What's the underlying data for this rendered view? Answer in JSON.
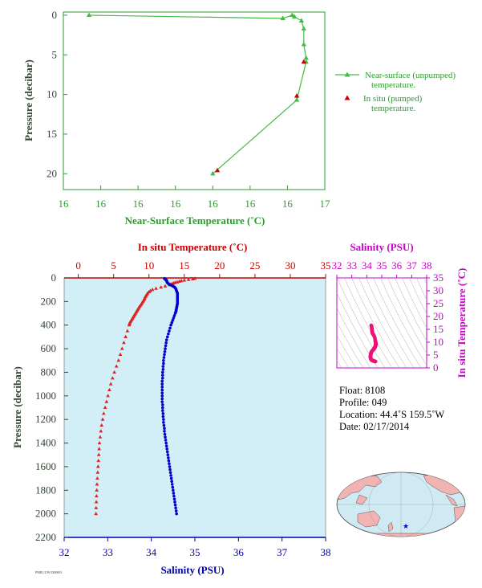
{
  "chart_data": [
    {
      "type": "line",
      "xlabel": "Near-Surface Temperature (˚C)",
      "ylabel": "Pressure (decibar)",
      "xticks": [
        "16",
        "16",
        "16",
        "16",
        "16",
        "16",
        "16",
        "17"
      ],
      "yticks": [
        "0",
        "5",
        "10",
        "15",
        "20"
      ],
      "xlim": [
        15.87,
        16.99
      ],
      "ylim": [
        22,
        -0.4
      ],
      "legend_position": "right",
      "series": [
        {
          "name": "Near-surface (unpumped) temperature.",
          "color": "#44bb44",
          "points": [
            {
              "x": 15.98,
              "y": 0.0
            },
            {
              "x": 16.81,
              "y": 0.4
            },
            {
              "x": 16.85,
              "y": 0.0
            },
            {
              "x": 16.86,
              "y": 0.2
            },
            {
              "x": 16.89,
              "y": 0.7
            },
            {
              "x": 16.9,
              "y": 1.7
            },
            {
              "x": 16.9,
              "y": 3.7
            },
            {
              "x": 16.91,
              "y": 5.4
            },
            {
              "x": 16.91,
              "y": 5.9
            },
            {
              "x": 16.87,
              "y": 10.7
            },
            {
              "x": 16.51,
              "y": 20.0
            }
          ]
        },
        {
          "name": "In situ (pumped) temperature.",
          "color": "#cc0000",
          "points": [
            {
              "x": 16.9,
              "y": 5.9
            },
            {
              "x": 16.87,
              "y": 10.2
            },
            {
              "x": 16.53,
              "y": 19.6
            }
          ]
        }
      ]
    },
    {
      "type": "scatter",
      "title_top": "In situ Temperature (˚C)",
      "xlabel": "Salinity (PSU)",
      "ylabel": "Pressure (decibar)",
      "temp_ticks": [
        "0",
        "5",
        "10",
        "15",
        "20",
        "25",
        "30",
        "35"
      ],
      "sal_ticks": [
        "32",
        "33",
        "34",
        "35",
        "36",
        "37",
        "38"
      ],
      "yticks": [
        "0",
        "200",
        "400",
        "600",
        "800",
        "1000",
        "1200",
        "1400",
        "1600",
        "1800",
        "2000",
        "2200"
      ],
      "temp_lim": [
        -2,
        35
      ],
      "sal_lim": [
        32,
        38
      ],
      "ylim": [
        2200,
        0
      ],
      "temperature": {
        "color": "#dd2222",
        "pressure": [
          5,
          10,
          15,
          20,
          25,
          30,
          35,
          40,
          45,
          50,
          55,
          60,
          70,
          80,
          90,
          100,
          110,
          120,
          130,
          140,
          150,
          160,
          170,
          180,
          190,
          200,
          210,
          220,
          230,
          240,
          250,
          260,
          270,
          280,
          290,
          300,
          310,
          320,
          330,
          340,
          350,
          360,
          370,
          380,
          390,
          400,
          450,
          500,
          550,
          600,
          650,
          700,
          750,
          800,
          850,
          900,
          950,
          1000,
          1050,
          1100,
          1150,
          1200,
          1250,
          1300,
          1350,
          1400,
          1450,
          1500,
          1550,
          1600,
          1650,
          1700,
          1750,
          1800,
          1850,
          1900,
          1950,
          2000
        ],
        "temp": [
          16.5,
          16.2,
          15.6,
          15.0,
          14.6,
          14.3,
          14.0,
          13.7,
          13.5,
          13.3,
          13.1,
          12.9,
          12.3,
          11.7,
          11.0,
          10.5,
          10.2,
          10.0,
          9.8,
          9.7,
          9.6,
          9.5,
          9.4,
          9.35,
          9.25,
          9.15,
          9.05,
          8.95,
          8.85,
          8.7,
          8.6,
          8.5,
          8.4,
          8.3,
          8.2,
          8.1,
          8.0,
          7.9,
          7.8,
          7.7,
          7.6,
          7.5,
          7.4,
          7.3,
          7.25,
          7.2,
          6.95,
          6.7,
          6.45,
          6.2,
          5.95,
          5.7,
          5.4,
          5.1,
          4.85,
          4.6,
          4.4,
          4.2,
          4.0,
          3.8,
          3.6,
          3.45,
          3.3,
          3.2,
          3.1,
          3.0,
          2.95,
          2.9,
          2.85,
          2.8,
          2.75,
          2.7,
          2.65,
          2.62,
          2.58,
          2.55,
          2.52,
          2.5
        ]
      },
      "salinity": {
        "color": "#0000cc",
        "pressure": [
          5,
          10,
          15,
          20,
          25,
          30,
          35,
          40,
          45,
          50,
          55,
          60,
          65,
          70,
          75,
          80,
          90,
          100,
          110,
          120,
          130,
          140,
          150,
          160,
          170,
          180,
          190,
          200,
          210,
          220,
          230,
          240,
          250,
          260,
          270,
          280,
          290,
          300,
          320,
          340,
          360,
          380,
          400,
          425,
          450,
          475,
          500,
          525,
          550,
          575,
          600,
          625,
          650,
          675,
          700,
          725,
          750,
          775,
          800,
          825,
          850,
          875,
          900,
          925,
          950,
          975,
          1000,
          1025,
          1050,
          1075,
          1100,
          1125,
          1150,
          1175,
          1200,
          1225,
          1250,
          1275,
          1300,
          1325,
          1350,
          1375,
          1400,
          1425,
          1450,
          1475,
          1500,
          1525,
          1550,
          1575,
          1600,
          1625,
          1650,
          1675,
          1700,
          1725,
          1750,
          1775,
          1800,
          1825,
          1850,
          1875,
          1900,
          1925,
          1950,
          1975,
          2000
        ],
        "sal": [
          34.3,
          34.32,
          34.33,
          34.35,
          34.35,
          34.36,
          34.36,
          34.37,
          34.38,
          34.4,
          34.42,
          34.45,
          34.47,
          34.5,
          34.52,
          34.54,
          34.56,
          34.57,
          34.58,
          34.59,
          34.6,
          34.6,
          34.6,
          34.6,
          34.6,
          34.6,
          34.6,
          34.6,
          34.6,
          34.6,
          34.59,
          34.59,
          34.58,
          34.58,
          34.57,
          34.57,
          34.56,
          34.55,
          34.53,
          34.51,
          34.49,
          34.47,
          34.45,
          34.43,
          34.41,
          34.39,
          34.37,
          34.35,
          34.34,
          34.33,
          34.32,
          34.31,
          34.3,
          34.29,
          34.28,
          34.28,
          34.27,
          34.27,
          34.26,
          34.26,
          34.26,
          34.25,
          34.25,
          34.25,
          34.25,
          34.25,
          34.25,
          34.25,
          34.25,
          34.26,
          34.26,
          34.26,
          34.27,
          34.27,
          34.28,
          34.28,
          34.29,
          34.3,
          34.3,
          34.31,
          34.32,
          34.33,
          34.34,
          34.35,
          34.36,
          34.37,
          34.38,
          34.39,
          34.4,
          34.41,
          34.42,
          34.43,
          34.44,
          34.45,
          34.46,
          34.47,
          34.48,
          34.49,
          34.5,
          34.51,
          34.52,
          34.53,
          34.54,
          34.55,
          34.56,
          34.57,
          34.58
        ]
      }
    },
    {
      "type": "scatter",
      "title_top": "Salinity (PSU)",
      "ylabel": "In situ Temperature (˚C)",
      "sal_ticks": [
        "32",
        "33",
        "34",
        "35",
        "36",
        "37",
        "38"
      ],
      "temp_ticks": [
        "0",
        "5",
        "10",
        "15",
        "20",
        "25",
        "30",
        "35"
      ],
      "color": "#ee1177"
    }
  ],
  "info": {
    "float": "Float:  8108",
    "profile": "Profile:  049",
    "location": "Location:  44.4˚S  159.5˚W",
    "date": "Date:  02/17/2014"
  },
  "footer_code": "PMEL/UW 0200001",
  "map": {
    "float_marker": {
      "lat": -44.4,
      "lon": -159.5,
      "color": "#0000cc"
    }
  }
}
